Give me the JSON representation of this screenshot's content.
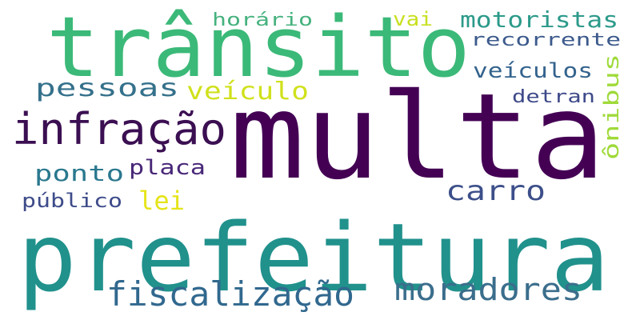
{
  "word_cloud": {
    "words": [
      {
        "text": "multa",
        "color": "#440154"
      },
      {
        "text": "prefeitura",
        "color": "#21918c"
      },
      {
        "text": "trânsito",
        "color": "#3bb978"
      },
      {
        "text": "infração",
        "color": "#3b0f52"
      },
      {
        "text": "fiscalização",
        "color": "#31688e"
      },
      {
        "text": "moradores",
        "color": "#3b6e8c"
      },
      {
        "text": "carro",
        "color": "#3c4f8a"
      },
      {
        "text": "pessoas",
        "color": "#35718b"
      },
      {
        "text": "veículo",
        "color": "#d0e11c"
      },
      {
        "text": "veículos",
        "color": "#33638d"
      },
      {
        "text": "motoristas",
        "color": "#2c9a8a"
      },
      {
        "text": "recorrente",
        "color": "#3c5a8c"
      },
      {
        "text": "ponto",
        "color": "#2a788e"
      },
      {
        "text": "placa",
        "color": "#482777"
      },
      {
        "text": "lei",
        "color": "#e5e419"
      },
      {
        "text": "público",
        "color": "#3e4c8a"
      },
      {
        "text": "horário",
        "color": "#46b27e"
      },
      {
        "text": "vai",
        "color": "#c8e020"
      },
      {
        "text": "detran",
        "color": "#3e4989"
      },
      {
        "text": "ônibus",
        "color": "#9fda3a"
      }
    ]
  }
}
